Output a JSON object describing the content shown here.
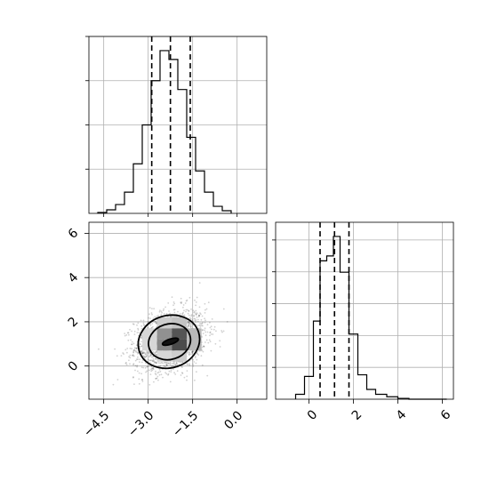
{
  "chart_data": [
    {
      "panel": "marginal-x",
      "type": "bar",
      "grid": true,
      "xlim": [
        -5.0,
        1.0
      ],
      "ylim": [
        0,
        1
      ],
      "bins": [
        {
          "x0": -4.7,
          "x1": -4.4,
          "v": 0.005
        },
        {
          "x0": -4.4,
          "x1": -4.1,
          "v": 0.02
        },
        {
          "x0": -4.1,
          "x1": -3.8,
          "v": 0.05
        },
        {
          "x0": -3.8,
          "x1": -3.5,
          "v": 0.12
        },
        {
          "x0": -3.5,
          "x1": -3.2,
          "v": 0.28
        },
        {
          "x0": -3.2,
          "x1": -2.9,
          "v": 0.5
        },
        {
          "x0": -2.9,
          "x1": -2.6,
          "v": 0.75
        },
        {
          "x0": -2.6,
          "x1": -2.3,
          "v": 0.92
        },
        {
          "x0": -2.3,
          "x1": -2.0,
          "v": 0.87
        },
        {
          "x0": -2.0,
          "x1": -1.7,
          "v": 0.7
        },
        {
          "x0": -1.7,
          "x1": -1.4,
          "v": 0.43
        },
        {
          "x0": -1.4,
          "x1": -1.1,
          "v": 0.24
        },
        {
          "x0": -1.1,
          "x1": -0.8,
          "v": 0.12
        },
        {
          "x0": -0.8,
          "x1": -0.5,
          "v": 0.04
        },
        {
          "x0": -0.5,
          "x1": -0.2,
          "v": 0.015
        }
      ],
      "quantiles": [
        -2.88,
        -2.25,
        -1.58
      ]
    },
    {
      "panel": "marginal-y",
      "type": "bar",
      "grid": true,
      "xlim": [
        -1.5,
        6.5
      ],
      "ylim": [
        0,
        1
      ],
      "xticks": [
        "0",
        "2",
        "4",
        "6"
      ],
      "xtick_values": [
        0,
        2,
        4,
        6
      ],
      "bins": [
        {
          "x0": -0.6,
          "x1": -0.2,
          "v": 0.03
        },
        {
          "x0": -0.2,
          "x1": 0.2,
          "v": 0.14
        },
        {
          "x0": 0.2,
          "x1": 0.5,
          "v": 0.48
        },
        {
          "x0": 0.5,
          "x1": 0.8,
          "v": 0.85
        },
        {
          "x0": 0.8,
          "x1": 1.1,
          "v": 0.88
        },
        {
          "x0": 1.1,
          "x1": 1.4,
          "v": 1.0
        },
        {
          "x0": 1.4,
          "x1": 1.8,
          "v": 0.78
        },
        {
          "x0": 1.8,
          "x1": 2.2,
          "v": 0.4
        },
        {
          "x0": 2.2,
          "x1": 2.6,
          "v": 0.15
        },
        {
          "x0": 2.6,
          "x1": 3.0,
          "v": 0.06
        },
        {
          "x0": 3.0,
          "x1": 3.5,
          "v": 0.03
        },
        {
          "x0": 3.5,
          "x1": 4.0,
          "v": 0.015
        },
        {
          "x0": 4.0,
          "x1": 4.5,
          "v": 0.005
        }
      ],
      "quantiles": [
        0.5,
        1.15,
        1.8
      ]
    },
    {
      "panel": "joint",
      "type": "scatter",
      "grid": true,
      "xlim": [
        -5.0,
        1.0
      ],
      "ylim": [
        -1.5,
        6.5
      ],
      "xticks": [
        "−4.5",
        "−3.0",
        "−1.5",
        "0.0"
      ],
      "xtick_values": [
        -4.5,
        -3.0,
        -1.5,
        0.0
      ],
      "yticks": [
        "0",
        "2",
        "4",
        "6"
      ],
      "ytick_values": [
        0,
        2,
        4,
        6
      ],
      "distribution": {
        "mean_x": -2.25,
        "mean_y": 1.15,
        "sd_x": 0.6,
        "sd_y": 0.7,
        "correlation": 0.25
      },
      "density_cells": [
        {
          "x": -2.7,
          "y": 1.7,
          "w": 0.5,
          "h": 0.5,
          "level": 0.25
        },
        {
          "x": -2.2,
          "y": 1.7,
          "w": 0.5,
          "h": 0.5,
          "level": 0.3
        },
        {
          "x": -3.2,
          "y": 1.2,
          "w": 0.5,
          "h": 0.5,
          "level": 0.2
        },
        {
          "x": -2.7,
          "y": 1.2,
          "w": 0.5,
          "h": 0.5,
          "level": 0.55
        },
        {
          "x": -2.2,
          "y": 1.2,
          "w": 0.5,
          "h": 0.5,
          "level": 0.85
        },
        {
          "x": -1.7,
          "y": 1.2,
          "w": 0.5,
          "h": 0.5,
          "level": 0.35
        },
        {
          "x": -3.2,
          "y": 0.7,
          "w": 0.5,
          "h": 0.5,
          "level": 0.2
        },
        {
          "x": -2.7,
          "y": 0.7,
          "w": 0.5,
          "h": 0.5,
          "level": 0.6
        },
        {
          "x": -2.2,
          "y": 0.7,
          "w": 0.5,
          "h": 0.5,
          "level": 0.9
        },
        {
          "x": -1.7,
          "y": 0.7,
          "w": 0.5,
          "h": 0.5,
          "level": 0.35
        },
        {
          "x": -2.7,
          "y": 0.2,
          "w": 0.5,
          "h": 0.5,
          "level": 0.2
        },
        {
          "x": -2.2,
          "y": 0.2,
          "w": 0.5,
          "h": 0.5,
          "level": 0.25
        }
      ],
      "contours": [
        {
          "cx": -2.25,
          "cy": 1.1,
          "rx": 0.28,
          "ry": 0.12,
          "fill": "#111111"
        },
        {
          "cx": -2.28,
          "cy": 1.1,
          "rx": 0.72,
          "ry": 0.8,
          "fill": "none"
        },
        {
          "cx": -2.3,
          "cy": 1.1,
          "rx": 1.05,
          "ry": 1.18,
          "fill": "none"
        }
      ]
    }
  ]
}
